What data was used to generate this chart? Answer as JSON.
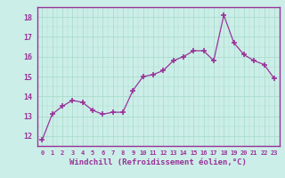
{
  "x": [
    0,
    1,
    2,
    3,
    4,
    5,
    6,
    7,
    8,
    9,
    10,
    11,
    12,
    13,
    14,
    15,
    16,
    17,
    18,
    19,
    20,
    21,
    22,
    23
  ],
  "y": [
    11.8,
    13.1,
    13.5,
    13.8,
    13.7,
    13.3,
    13.1,
    13.2,
    13.2,
    14.3,
    15.0,
    15.1,
    15.3,
    15.8,
    16.0,
    16.3,
    16.3,
    15.8,
    18.1,
    16.7,
    16.1,
    15.8,
    15.6,
    14.9
  ],
  "line_color": "#993399",
  "marker": "+",
  "marker_size": 4,
  "xlabel": "Windchill (Refroidissement éolien,°C)",
  "ylabel_ticks": [
    12,
    13,
    14,
    15,
    16,
    17,
    18
  ],
  "ylim": [
    11.5,
    18.5
  ],
  "xlim": [
    -0.5,
    23.5
  ],
  "xtick_labels": [
    "0",
    "1",
    "2",
    "3",
    "4",
    "5",
    "6",
    "7",
    "8",
    "9",
    "10",
    "11",
    "12",
    "13",
    "14",
    "15",
    "16",
    "17",
    "18",
    "19",
    "20",
    "21",
    "22",
    "23"
  ],
  "bg_color": "#cceee8",
  "grid_color": "#aaddcc",
  "spine_color": "#993399"
}
